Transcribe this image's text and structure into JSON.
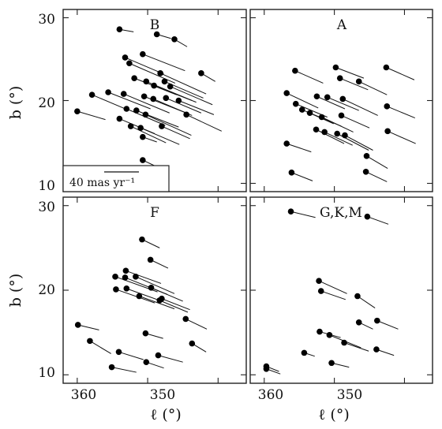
{
  "figure": {
    "xlabel": "ℓ (°)",
    "ylabel": "b (°)",
    "scale_bar_label": "40 mas yr⁻¹",
    "scale_bar_pm_mas_yr": 40
  },
  "chart_data": [
    {
      "type": "scatter",
      "panel": "B",
      "title": "B",
      "xlabel": "ℓ (°)",
      "ylabel": "b (°)",
      "xlim": [
        362,
        336
      ],
      "ylim": [
        9,
        31
      ],
      "x_ticks": [],
      "y_ticks": [
        10,
        20,
        30
      ],
      "vectors": "proper motion",
      "stars": [
        {
          "l": 354.0,
          "b": 28.6,
          "dl": -2.0,
          "db": -0.3
        },
        {
          "l": 348.7,
          "b": 28.0,
          "dl": -2.0,
          "db": -0.5
        },
        {
          "l": 346.2,
          "b": 27.4,
          "dl": -1.8,
          "db": -0.9
        },
        {
          "l": 342.4,
          "b": 23.3,
          "dl": -2.0,
          "db": -1.0
        },
        {
          "l": 353.2,
          "b": 25.2,
          "dl": -5.5,
          "db": -2.0
        },
        {
          "l": 352.6,
          "b": 24.5,
          "dl": -6.5,
          "db": -2.4
        },
        {
          "l": 350.7,
          "b": 25.6,
          "dl": -6.0,
          "db": -2.0
        },
        {
          "l": 348.2,
          "b": 23.3,
          "dl": -6.5,
          "db": -2.5
        },
        {
          "l": 351.9,
          "b": 22.7,
          "dl": -6.0,
          "db": -2.0
        },
        {
          "l": 350.2,
          "b": 22.3,
          "dl": -6.5,
          "db": -2.3
        },
        {
          "l": 349.1,
          "b": 21.8,
          "dl": -6.0,
          "db": -2.0
        },
        {
          "l": 347.6,
          "b": 22.3,
          "dl": -5.5,
          "db": -2.0
        },
        {
          "l": 346.8,
          "b": 21.7,
          "dl": -6.0,
          "db": -2.2
        },
        {
          "l": 357.9,
          "b": 20.7,
          "dl": -5.0,
          "db": -1.8
        },
        {
          "l": 355.6,
          "b": 21.0,
          "dl": -6.0,
          "db": -2.0
        },
        {
          "l": 353.4,
          "b": 20.8,
          "dl": -6.5,
          "db": -2.3
        },
        {
          "l": 350.5,
          "b": 20.5,
          "dl": -6.0,
          "db": -2.0
        },
        {
          "l": 349.2,
          "b": 20.2,
          "dl": -5.5,
          "db": -2.0
        },
        {
          "l": 347.4,
          "b": 20.3,
          "dl": -5.0,
          "db": -1.8
        },
        {
          "l": 345.6,
          "b": 20.0,
          "dl": -5.0,
          "db": -1.7
        },
        {
          "l": 360.0,
          "b": 18.7,
          "dl": -4.0,
          "db": -1.0
        },
        {
          "l": 353.0,
          "b": 19.0,
          "dl": -5.5,
          "db": -2.0
        },
        {
          "l": 351.6,
          "b": 18.8,
          "dl": -6.0,
          "db": -2.0
        },
        {
          "l": 350.3,
          "b": 18.3,
          "dl": -6.5,
          "db": -2.5
        },
        {
          "l": 344.5,
          "b": 18.3,
          "dl": -5.0,
          "db": -2.0
        },
        {
          "l": 354.0,
          "b": 17.8,
          "dl": -5.0,
          "db": -1.8
        },
        {
          "l": 352.4,
          "b": 16.9,
          "dl": -5.0,
          "db": -2.0
        },
        {
          "l": 351.0,
          "b": 16.7,
          "dl": -5.5,
          "db": -2.0
        },
        {
          "l": 348.0,
          "b": 16.9,
          "dl": -4.0,
          "db": -1.5
        },
        {
          "l": 350.7,
          "b": 15.6,
          "dl": -2.0,
          "db": -0.6
        },
        {
          "l": 350.7,
          "b": 12.8,
          "dl": -2.0,
          "db": -0.8
        }
      ]
    },
    {
      "type": "scatter",
      "panel": "A",
      "title": "A",
      "xlabel": "ℓ (°)",
      "ylabel": "b (°)",
      "xlim": [
        362,
        336
      ],
      "ylim": [
        9,
        31
      ],
      "vectors": "proper motion",
      "stars": [
        {
          "l": 349.8,
          "b": 24.0,
          "dl": -4.0,
          "db": -1.3
        },
        {
          "l": 342.6,
          "b": 24.0,
          "dl": -4.0,
          "db": -1.5
        },
        {
          "l": 355.6,
          "b": 23.6,
          "dl": -4.0,
          "db": -1.5
        },
        {
          "l": 349.2,
          "b": 22.7,
          "dl": -4.0,
          "db": -1.4
        },
        {
          "l": 346.5,
          "b": 22.3,
          "dl": -4.0,
          "db": -1.6
        },
        {
          "l": 356.8,
          "b": 20.9,
          "dl": -4.5,
          "db": -1.8
        },
        {
          "l": 352.5,
          "b": 20.5,
          "dl": -4.0,
          "db": -1.5
        },
        {
          "l": 351.0,
          "b": 20.4,
          "dl": -4.5,
          "db": -1.6
        },
        {
          "l": 348.8,
          "b": 20.2,
          "dl": -5.0,
          "db": -2.0
        },
        {
          "l": 355.5,
          "b": 19.6,
          "dl": -4.5,
          "db": -1.6
        },
        {
          "l": 354.6,
          "b": 18.9,
          "dl": -4.5,
          "db": -1.7
        },
        {
          "l": 342.5,
          "b": 19.3,
          "dl": -4.0,
          "db": -1.4
        },
        {
          "l": 353.5,
          "b": 18.5,
          "dl": -4.5,
          "db": -1.6
        },
        {
          "l": 351.8,
          "b": 18.0,
          "dl": -4.5,
          "db": -1.8
        },
        {
          "l": 349.0,
          "b": 18.2,
          "dl": -4.0,
          "db": -1.5
        },
        {
          "l": 356.8,
          "b": 14.8,
          "dl": -3.5,
          "db": -1.0
        },
        {
          "l": 352.6,
          "b": 16.5,
          "dl": -4.0,
          "db": -1.7
        },
        {
          "l": 351.4,
          "b": 16.2,
          "dl": -4.0,
          "db": -1.6
        },
        {
          "l": 349.6,
          "b": 16.0,
          "dl": -4.5,
          "db": -2.0
        },
        {
          "l": 348.5,
          "b": 15.8,
          "dl": -4.0,
          "db": -1.8
        },
        {
          "l": 342.4,
          "b": 16.3,
          "dl": -4.0,
          "db": -1.5
        },
        {
          "l": 345.4,
          "b": 13.3,
          "dl": -3.0,
          "db": -1.5
        },
        {
          "l": 345.5,
          "b": 11.4,
          "dl": -3.0,
          "db": -1.2
        },
        {
          "l": 356.1,
          "b": 11.3,
          "dl": -3.0,
          "db": -1.0
        }
      ]
    },
    {
      "type": "scatter",
      "panel": "F",
      "title": "F",
      "xlabel": "ℓ (°)",
      "ylabel": "b (°)",
      "xlim": [
        362,
        336
      ],
      "ylim": [
        9,
        31
      ],
      "x_ticks": [
        360,
        350
      ],
      "y_ticks": [
        10,
        20,
        30
      ],
      "vectors": "proper motion",
      "stars": [
        {
          "l": 350.8,
          "b": 26.0,
          "dl": -2.5,
          "db": -1.0
        },
        {
          "l": 349.6,
          "b": 23.6,
          "dl": -2.5,
          "db": -1.0
        },
        {
          "l": 353.1,
          "b": 22.3,
          "dl": -5.0,
          "db": -1.5
        },
        {
          "l": 354.6,
          "b": 21.6,
          "dl": -6.0,
          "db": -1.8
        },
        {
          "l": 353.2,
          "b": 21.5,
          "dl": -6.0,
          "db": -2.0
        },
        {
          "l": 351.7,
          "b": 21.6,
          "dl": -5.5,
          "db": -2.0
        },
        {
          "l": 354.5,
          "b": 20.1,
          "dl": -5.5,
          "db": -1.6
        },
        {
          "l": 353.0,
          "b": 20.2,
          "dl": -5.0,
          "db": -1.5
        },
        {
          "l": 349.5,
          "b": 20.3,
          "dl": -4.5,
          "db": -1.6
        },
        {
          "l": 351.2,
          "b": 19.3,
          "dl": -5.0,
          "db": -1.5
        },
        {
          "l": 348.0,
          "b": 19.0,
          "dl": -4.0,
          "db": -1.3
        },
        {
          "l": 348.3,
          "b": 18.8,
          "dl": -4.0,
          "db": -1.4
        },
        {
          "l": 344.6,
          "b": 16.6,
          "dl": -3.0,
          "db": -1.2
        },
        {
          "l": 359.9,
          "b": 15.9,
          "dl": -3.0,
          "db": -0.6
        },
        {
          "l": 350.3,
          "b": 14.9,
          "dl": -2.5,
          "db": -0.6
        },
        {
          "l": 358.2,
          "b": 14.0,
          "dl": -3.0,
          "db": -1.5
        },
        {
          "l": 343.7,
          "b": 13.7,
          "dl": -2.0,
          "db": -1.0
        },
        {
          "l": 354.1,
          "b": 12.7,
          "dl": -3.5,
          "db": -0.9
        },
        {
          "l": 348.5,
          "b": 12.3,
          "dl": -3.5,
          "db": -0.8
        },
        {
          "l": 350.2,
          "b": 11.5,
          "dl": -2.5,
          "db": -0.7
        },
        {
          "l": 355.1,
          "b": 10.9,
          "dl": -3.5,
          "db": -0.6
        }
      ]
    },
    {
      "type": "scatter",
      "panel": "G,K,M",
      "title": "G,K,M",
      "xlabel": "ℓ (°)",
      "ylabel": "b (°)",
      "xlim": [
        362,
        336
      ],
      "ylim": [
        9,
        31
      ],
      "x_ticks": [
        360,
        350
      ],
      "vectors": "proper motion",
      "stars": [
        {
          "l": 356.2,
          "b": 29.3,
          "dl": -3.5,
          "db": -0.7
        },
        {
          "l": 345.3,
          "b": 28.7,
          "dl": -3.0,
          "db": -0.9
        },
        {
          "l": 352.2,
          "b": 21.1,
          "dl": -4.0,
          "db": -1.5
        },
        {
          "l": 351.9,
          "b": 19.9,
          "dl": -3.5,
          "db": -1.0
        },
        {
          "l": 346.7,
          "b": 19.3,
          "dl": -2.5,
          "db": -1.4
        },
        {
          "l": 352.1,
          "b": 15.1,
          "dl": -3.0,
          "db": -0.7
        },
        {
          "l": 350.7,
          "b": 14.7,
          "dl": -4.5,
          "db": -1.5
        },
        {
          "l": 348.6,
          "b": 13.8,
          "dl": -3.5,
          "db": -1.0
        },
        {
          "l": 346.5,
          "b": 16.2,
          "dl": -2.0,
          "db": -0.8
        },
        {
          "l": 343.9,
          "b": 16.4,
          "dl": -3.0,
          "db": -1.0
        },
        {
          "l": 354.3,
          "b": 12.6,
          "dl": -1.5,
          "db": -0.4
        },
        {
          "l": 344.0,
          "b": 13.0,
          "dl": -2.5,
          "db": -0.7
        },
        {
          "l": 350.4,
          "b": 11.4,
          "dl": -2.5,
          "db": -0.5
        },
        {
          "l": 359.7,
          "b": 11.0,
          "dl": -1.8,
          "db": -0.6
        },
        {
          "l": 359.7,
          "b": 10.7,
          "dl": -2.0,
          "db": -0.6
        }
      ]
    }
  ]
}
